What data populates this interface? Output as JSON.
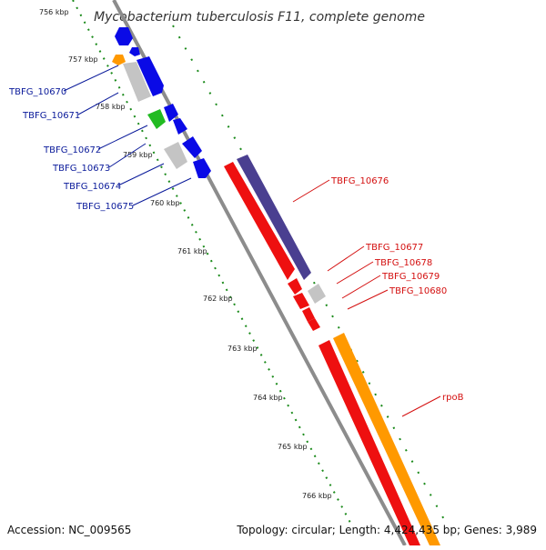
{
  "title": "Mycobacterium tuberculosis F11, complete genome",
  "footer": {
    "accession": "Accession: NC_009565",
    "summary": "Topology: circular; Length: 4,424,435 bp; Genes: 3,989"
  },
  "colors": {
    "backbone": "#8c8c8c",
    "ticks": "#1a8a1a",
    "blue_gene": "#0a0ae6",
    "blue_label": "#0a1a9a",
    "red_gene": "#ee1010",
    "red_label": "#d41010",
    "orange_gene": "#ff9900",
    "gray_gene": "#c4c4c4",
    "green_gene": "#22bb22",
    "purple_gene": "#4a3f90"
  },
  "kbp_labels": [
    "756 kbp",
    "757 kbp",
    "758 kbp",
    "759 kbp",
    "760 kbp",
    "761 kbp",
    "762 kbp",
    "763 kbp",
    "764 kbp",
    "765 kbp",
    "766 kbp"
  ],
  "blue_labels": [
    "TBFG_10670",
    "TBFG_10671",
    "TBFG_10672",
    "TBFG_10673",
    "TBFG_10674",
    "TBFG_10675"
  ],
  "red_labels": [
    "TBFG_10676",
    "TBFG_10677",
    "TBFG_10678",
    "TBFG_10679",
    "TBFG_10680",
    "rpoB"
  ]
}
